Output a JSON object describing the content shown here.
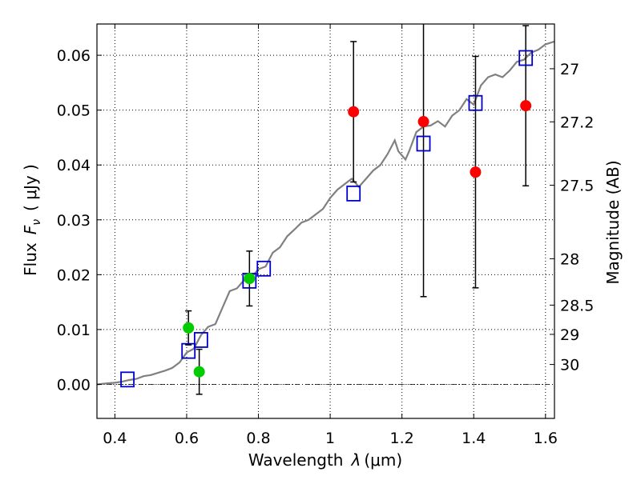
{
  "chart_data": {
    "type": "scatter",
    "xlabel": "Wavelength",
    "xlabel_symbol": "λ",
    "xlabel_unit": "(μm)",
    "ylabel_prefix": "Flux",
    "ylabel_symbol_main": "F",
    "ylabel_symbol_sub": "ν",
    "ylabel_unit": "( μJy )",
    "y2label": "Magnitude (AB)",
    "xlim": [
      0.35,
      1.625
    ],
    "ylim": [
      -0.0062,
      0.0657
    ],
    "grid": true,
    "x_ticks": [
      {
        "value": 0.4,
        "label": "0.4"
      },
      {
        "value": 0.6,
        "label": "0.6"
      },
      {
        "value": 0.8,
        "label": "0.8"
      },
      {
        "value": 1.0,
        "label": "1"
      },
      {
        "value": 1.2,
        "label": "1.2"
      },
      {
        "value": 1.4,
        "label": "1.4"
      },
      {
        "value": 1.6,
        "label": "1.6"
      }
    ],
    "y_ticks": [
      {
        "value": 0.0,
        "label": "0.00"
      },
      {
        "value": 0.01,
        "label": "0.01"
      },
      {
        "value": 0.02,
        "label": "0.02"
      },
      {
        "value": 0.03,
        "label": "0.03"
      },
      {
        "value": 0.04,
        "label": "0.04"
      },
      {
        "value": 0.05,
        "label": "0.05"
      },
      {
        "value": 0.06,
        "label": "0.06"
      }
    ],
    "y2_ticks": [
      {
        "value": 27.0,
        "label": "27"
      },
      {
        "value": 27.2,
        "label": "27.2"
      },
      {
        "value": 27.5,
        "label": "27.5"
      },
      {
        "value": 28.0,
        "label": "28"
      },
      {
        "value": 28.5,
        "label": "28.5"
      },
      {
        "value": 29.0,
        "label": "29"
      },
      {
        "value": 30.0,
        "label": "30"
      }
    ],
    "series": [
      {
        "role": "template-spectrum",
        "color": "#808080",
        "x": [
          0.35,
          0.38,
          0.4,
          0.42,
          0.44,
          0.46,
          0.48,
          0.5,
          0.52,
          0.54,
          0.56,
          0.58,
          0.6,
          0.62,
          0.64,
          0.66,
          0.68,
          0.7,
          0.72,
          0.74,
          0.76,
          0.78,
          0.8,
          0.82,
          0.84,
          0.86,
          0.88,
          0.9,
          0.92,
          0.94,
          0.96,
          0.98,
          1.0,
          1.02,
          1.04,
          1.06,
          1.08,
          1.1,
          1.12,
          1.14,
          1.16,
          1.18,
          1.19,
          1.21,
          1.22,
          1.24,
          1.26,
          1.28,
          1.3,
          1.32,
          1.34,
          1.36,
          1.38,
          1.4,
          1.42,
          1.44,
          1.46,
          1.48,
          1.5,
          1.52,
          1.54,
          1.56,
          1.58,
          1.6,
          1.625
        ],
        "y": [
          0.0,
          0.0002,
          0.0003,
          0.0005,
          0.0008,
          0.001,
          0.0015,
          0.0017,
          0.0021,
          0.0025,
          0.003,
          0.004,
          0.0058,
          0.0065,
          0.009,
          0.0105,
          0.011,
          0.014,
          0.017,
          0.0175,
          0.019,
          0.0195,
          0.021,
          0.0215,
          0.024,
          0.025,
          0.027,
          0.0282,
          0.0295,
          0.03,
          0.031,
          0.032,
          0.034,
          0.0355,
          0.0365,
          0.0375,
          0.036,
          0.0375,
          0.039,
          0.04,
          0.042,
          0.0445,
          0.0425,
          0.041,
          0.0425,
          0.046,
          0.047,
          0.0472,
          0.048,
          0.047,
          0.049,
          0.05,
          0.052,
          0.051,
          0.0545,
          0.056,
          0.0565,
          0.056,
          0.0572,
          0.0588,
          0.0592,
          0.0605,
          0.061,
          0.062,
          0.0625
        ]
      },
      {
        "role": "model-photometry",
        "color": "#0000cc",
        "marker": "square",
        "x": [
          0.435,
          0.605,
          0.64,
          0.775,
          0.815,
          1.065,
          1.26,
          1.405,
          1.545
        ],
        "y": [
          0.0009,
          0.0061,
          0.0081,
          0.0189,
          0.0211,
          0.0348,
          0.0439,
          0.0513,
          0.0595
        ]
      },
      {
        "role": "measured-optical",
        "color": "#00cc00",
        "marker": "circle",
        "x": [
          0.605,
          0.635,
          0.775
        ],
        "y": [
          0.0103,
          0.0023,
          0.0193
        ],
        "err": [
          0.0031,
          0.0041,
          0.005
        ]
      },
      {
        "role": "measured-infrared",
        "color": "#ff0000",
        "marker": "circle",
        "x": [
          1.065,
          1.26,
          1.405,
          1.545
        ],
        "y": [
          0.0497,
          0.0479,
          0.0387,
          0.0508
        ],
        "err": [
          0.0128,
          0.0319,
          0.0211,
          0.0146
        ]
      }
    ]
  }
}
